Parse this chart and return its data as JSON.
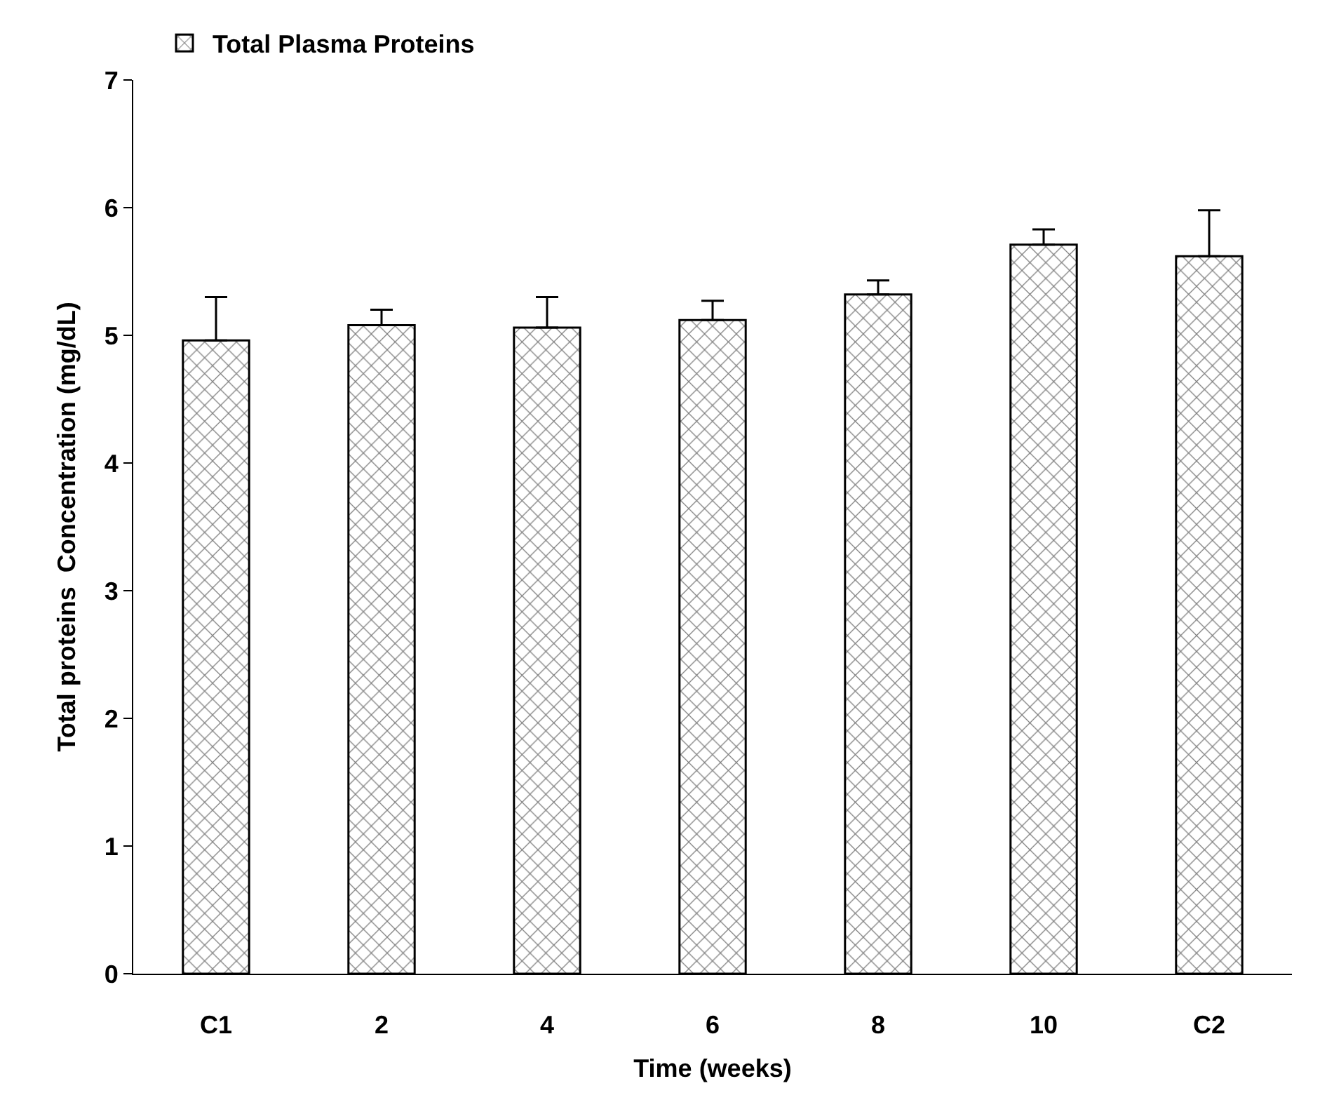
{
  "chart_data": {
    "type": "bar",
    "xlabel": "Time (weeks)",
    "ylabel": "Total proteins  Concentration (mg/dL)",
    "categories": [
      "C1",
      "2",
      "4",
      "6",
      "8",
      "10",
      "C2"
    ],
    "series": [
      {
        "name": "Total Plasma Proteins",
        "color": "#000000",
        "values": [
          4.96,
          5.08,
          5.06,
          5.12,
          5.32,
          5.71,
          5.62
        ],
        "errors": [
          [
            4.96,
            5.3
          ],
          [
            5.08,
            5.2
          ],
          [
            5.06,
            5.3
          ],
          [
            5.12,
            5.27
          ],
          [
            5.32,
            5.43
          ],
          [
            5.71,
            5.83
          ],
          [
            5.62,
            5.98
          ]
        ]
      }
    ],
    "ylim": [
      0,
      7
    ],
    "yticks": [
      0,
      1,
      2,
      3,
      4,
      5,
      6,
      7
    ],
    "legend": "top left"
  }
}
